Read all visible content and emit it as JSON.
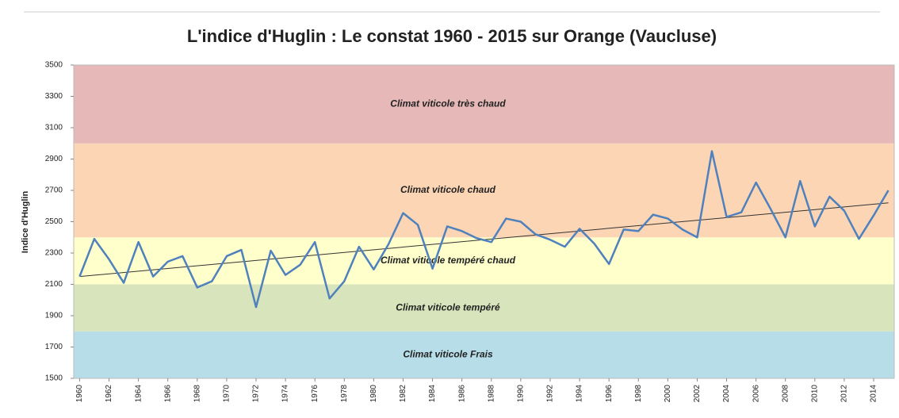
{
  "chart_data": {
    "type": "line",
    "title": "L'indice d'Huglin : Le constat 1960 - 2015 sur Orange (Vaucluse)",
    "y_label": "Indice d'Huglin",
    "x": [
      1960,
      1961,
      1962,
      1963,
      1964,
      1965,
      1966,
      1967,
      1968,
      1969,
      1970,
      1971,
      1972,
      1973,
      1974,
      1975,
      1976,
      1977,
      1978,
      1979,
      1980,
      1981,
      1982,
      1983,
      1984,
      1985,
      1986,
      1987,
      1988,
      1989,
      1990,
      1991,
      1992,
      1993,
      1994,
      1995,
      1996,
      1997,
      1998,
      1999,
      2000,
      2001,
      2002,
      2003,
      2004,
      2005,
      2006,
      2007,
      2008,
      2009,
      2010,
      2011,
      2012,
      2013,
      2014,
      2015
    ],
    "values": [
      2150,
      2390,
      2260,
      2110,
      2370,
      2150,
      2245,
      2280,
      2080,
      2120,
      2280,
      2320,
      1955,
      2315,
      2160,
      2225,
      2370,
      2010,
      2120,
      2340,
      2195,
      2355,
      2555,
      2480,
      2200,
      2470,
      2440,
      2395,
      2370,
      2520,
      2500,
      2420,
      2385,
      2340,
      2455,
      2360,
      2230,
      2450,
      2440,
      2545,
      2520,
      2450,
      2400,
      2950,
      2530,
      2560,
      2750,
      2580,
      2400,
      2760,
      2470,
      2660,
      2570,
      2390,
      2540,
      2700
    ],
    "color": "#4f81bd",
    "trendline": {
      "x": [
        1960,
        2015
      ],
      "values": [
        2150,
        2620
      ],
      "color": "#333333"
    },
    "bands": [
      {
        "label": "Climat viticole Frais",
        "from": 1500,
        "to": 1800,
        "color": "#b7dde8"
      },
      {
        "label": "Climat viticole tempéré",
        "from": 1800,
        "to": 2100,
        "color": "#d8e4bc"
      },
      {
        "label": "Climat viticole tempéré chaud",
        "from": 2100,
        "to": 2400,
        "color": "#ffffcc"
      },
      {
        "label": "Climat viticole chaud",
        "from": 2400,
        "to": 3000,
        "color": "#fcd5b4"
      },
      {
        "label": "Climat viticole très chaud",
        "from": 3000,
        "to": 3500,
        "color": "#e6b8b7"
      }
    ],
    "xlim": [
      1959.6,
      2015.4
    ],
    "xticks": [
      1960,
      1962,
      1964,
      1966,
      1968,
      1970,
      1972,
      1974,
      1976,
      1978,
      1980,
      1982,
      1984,
      1986,
      1988,
      1990,
      1992,
      1994,
      1996,
      1998,
      2000,
      2002,
      2004,
      2006,
      2008,
      2010,
      2012,
      2014
    ],
    "ylim": [
      1500,
      3500
    ],
    "yticks": [
      1500,
      1700,
      1900,
      2100,
      2300,
      2500,
      2700,
      2900,
      3100,
      3300,
      3500
    ]
  }
}
